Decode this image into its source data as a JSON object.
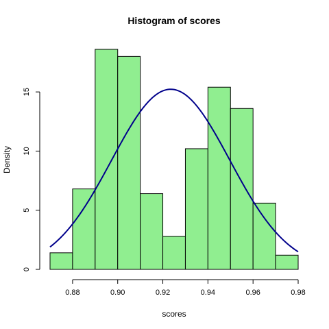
{
  "colors": {
    "bar_fill": "#90ee90",
    "bar_stroke": "#000000",
    "curve": "#00008b"
  },
  "chart_data": {
    "type": "bar",
    "title": "Histogram of scores",
    "xlabel": "scores",
    "ylabel": "Density",
    "bins": [
      [
        0.87,
        0.88
      ],
      [
        0.88,
        0.89
      ],
      [
        0.89,
        0.9
      ],
      [
        0.9,
        0.91
      ],
      [
        0.91,
        0.92
      ],
      [
        0.92,
        0.93
      ],
      [
        0.93,
        0.94
      ],
      [
        0.94,
        0.95
      ],
      [
        0.95,
        0.96
      ],
      [
        0.96,
        0.97
      ],
      [
        0.97,
        0.98
      ]
    ],
    "values": [
      1.4,
      6.8,
      18.6,
      18.0,
      6.4,
      2.8,
      10.2,
      15.4,
      13.6,
      5.6,
      1.2
    ],
    "curve": {
      "type": "normal-density",
      "mean": 0.9235,
      "sd": 0.0262
    },
    "xlim": [
      0.87,
      0.98
    ],
    "ylim": [
      0,
      18.6
    ],
    "xticks": [
      0.88,
      0.9,
      0.92,
      0.94,
      0.96,
      0.98
    ],
    "xtick_labels": [
      "0.88",
      "0.90",
      "0.92",
      "0.94",
      "0.96",
      "0.98"
    ],
    "yticks": [
      0,
      5,
      10,
      15
    ],
    "ytick_labels": [
      "0",
      "5",
      "10",
      "15"
    ],
    "grid": false,
    "legend": "none"
  }
}
